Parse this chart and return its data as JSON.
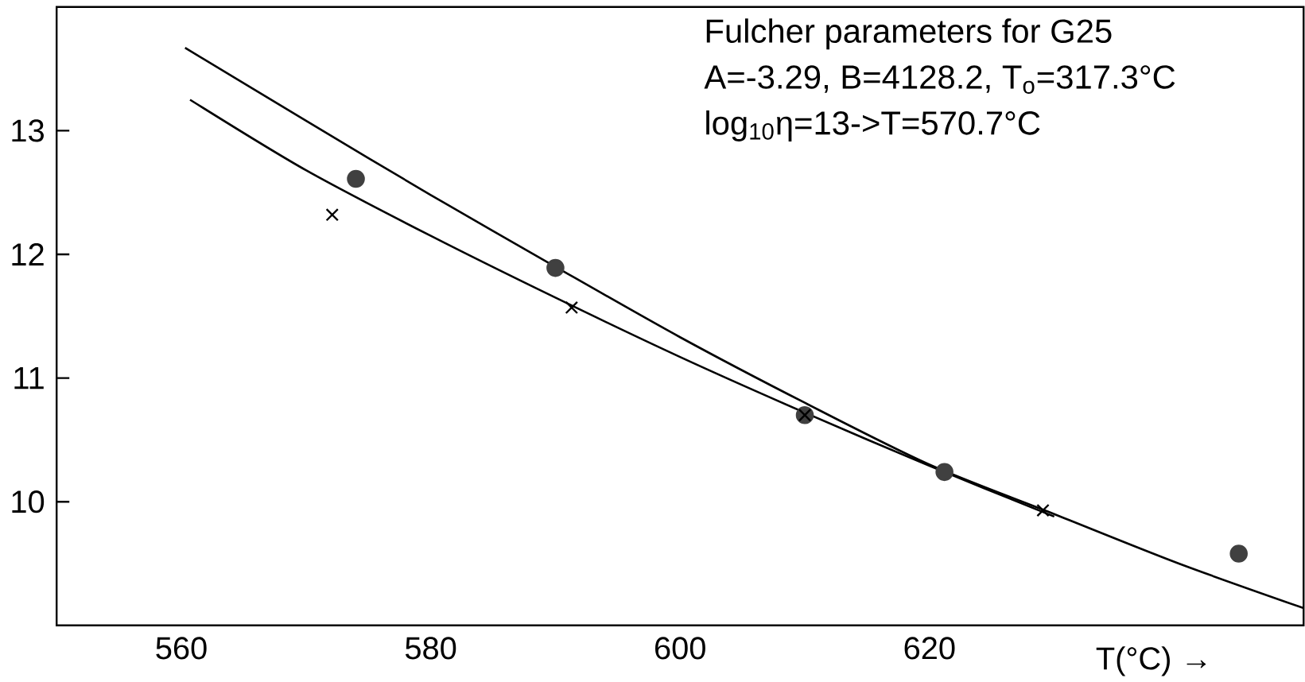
{
  "chart_data": {
    "type": "line",
    "xlabel": "T(°C) →",
    "xlim": [
      550,
      650
    ],
    "ylim": [
      9,
      14
    ],
    "xticks": [
      560,
      580,
      600,
      620
    ],
    "yticks": [
      10,
      11,
      12,
      13
    ],
    "annotations": [
      "Fulcher parameters for G25",
      "A=-3.29, B=4128.2, T$_{o}$=317.3°C",
      "log$_{10}$η=13->T=570.7°C"
    ],
    "series": [
      {
        "type": "scatter",
        "marker": "circle",
        "color": "#404040",
        "x": [
          574,
          590,
          610,
          621.2,
          644.8
        ],
        "values": [
          12.61,
          11.89,
          10.7,
          10.24,
          9.58
        ]
      },
      {
        "type": "scatter",
        "marker": "cross",
        "color": "#000000",
        "x": [
          572.1,
          591.3,
          610,
          629.1
        ],
        "values": [
          12.32,
          11.57,
          10.7,
          9.93
        ]
      },
      {
        "marker": "none",
        "color": "#000000",
        "x": [
          560.3,
          570,
          580,
          590,
          600,
          610,
          620,
          630,
          640,
          650
        ],
        "values": [
          13.67,
          13.08,
          12.48,
          11.9,
          11.33,
          10.8,
          10.3,
          9.9,
          9.5,
          9.14
        ]
      },
      {
        "marker": "none",
        "color": "#000000",
        "x": [
          560.7,
          570,
          580,
          590,
          600,
          610,
          620,
          630
        ],
        "values": [
          13.25,
          12.68,
          12.15,
          11.65,
          11.17,
          10.72,
          10.29,
          9.88
        ]
      }
    ]
  }
}
